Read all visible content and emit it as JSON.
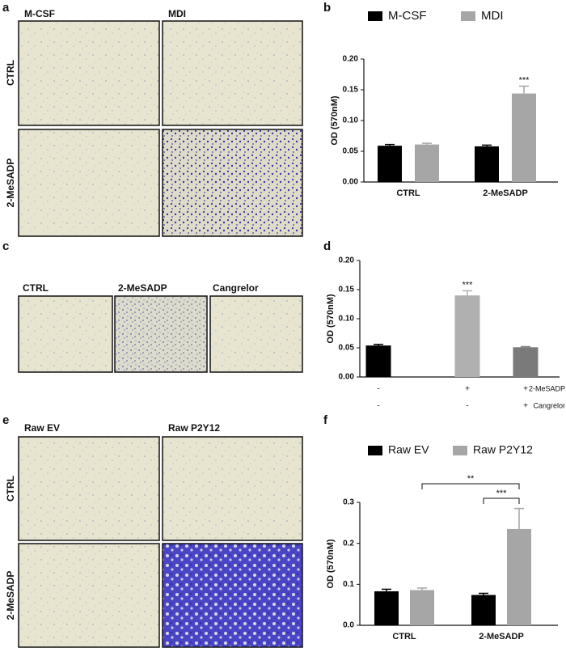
{
  "panels": {
    "a": {
      "label": "a",
      "columns": [
        "M-CSF",
        "MDI"
      ],
      "rows": [
        "CTRL",
        "2-MeSADP"
      ]
    },
    "c": {
      "label": "c",
      "columns": [
        "CTRL",
        "2-MeSADP",
        "Cangrelor"
      ]
    },
    "e": {
      "label": "e",
      "columns": [
        "Raw EV",
        "Raw P2Y12"
      ],
      "rows": [
        "CTRL",
        "2-MeSADP"
      ]
    }
  },
  "chart_data": [
    {
      "type": "bar",
      "panel_label": "b",
      "y_label": "OD (570nM)",
      "categories": [
        "CTRL",
        "2-MeSADP"
      ],
      "series": [
        {
          "name": "M-CSF",
          "color": "#000000",
          "values": [
            0.059,
            0.058
          ],
          "errors": [
            0.002,
            0.002
          ]
        },
        {
          "name": "MDI",
          "color": "#a6a6a6",
          "values": [
            0.061,
            0.144
          ],
          "errors": [
            0.002,
            0.012
          ]
        }
      ],
      "ylim": [
        0,
        0.2
      ],
      "yticks": [
        {
          "value": 0,
          "label": "0.00"
        },
        {
          "value": 0.05,
          "label": "0.05"
        },
        {
          "value": 0.1,
          "label": "0.10"
        },
        {
          "value": 0.15,
          "label": "0.15"
        },
        {
          "value": 0.2,
          "label": "0.20"
        }
      ],
      "annotation": "***"
    },
    {
      "type": "bar",
      "panel_label": "d",
      "y_label": "OD (570nM)",
      "categories": [
        null,
        null,
        null
      ],
      "values": [
        0.054,
        0.14,
        0.051
      ],
      "errors": [
        0.002,
        0.008,
        0.001
      ],
      "colors": [
        "#000000",
        "#b0b0b0",
        "#7a7a7a"
      ],
      "x_rows": [
        {
          "label": "2-MeSADP",
          "marks": [
            "-",
            "+",
            "+"
          ]
        },
        {
          "label": "Cangrelor",
          "marks": [
            "-",
            "-",
            "+"
          ]
        }
      ],
      "ylim": [
        0,
        0.2
      ],
      "yticks": [
        {
          "value": 0,
          "label": "0.00"
        },
        {
          "value": 0.05,
          "label": "0.05"
        },
        {
          "value": 0.1,
          "label": "0.10"
        },
        {
          "value": 0.15,
          "label": "0.15"
        },
        {
          "value": 0.2,
          "label": "0.20"
        }
      ],
      "annotation": "***"
    },
    {
      "type": "bar",
      "panel_label": "f",
      "y_label": "OD (570nM)",
      "categories": [
        "CTRL",
        "2-MeSADP"
      ],
      "series": [
        {
          "name": "Raw EV",
          "color": "#000000",
          "values": [
            0.083,
            0.074
          ],
          "errors": [
            0.005,
            0.004
          ]
        },
        {
          "name": "Raw P2Y12",
          "color": "#a6a6a6",
          "values": [
            0.086,
            0.235
          ],
          "errors": [
            0.005,
            0.05
          ]
        }
      ],
      "ylim": [
        0,
        0.3
      ],
      "yticks": [
        {
          "value": 0,
          "label": "0.0"
        },
        0.1,
        0.2,
        0.3
      ],
      "annotations": [
        "**",
        "***"
      ]
    }
  ]
}
